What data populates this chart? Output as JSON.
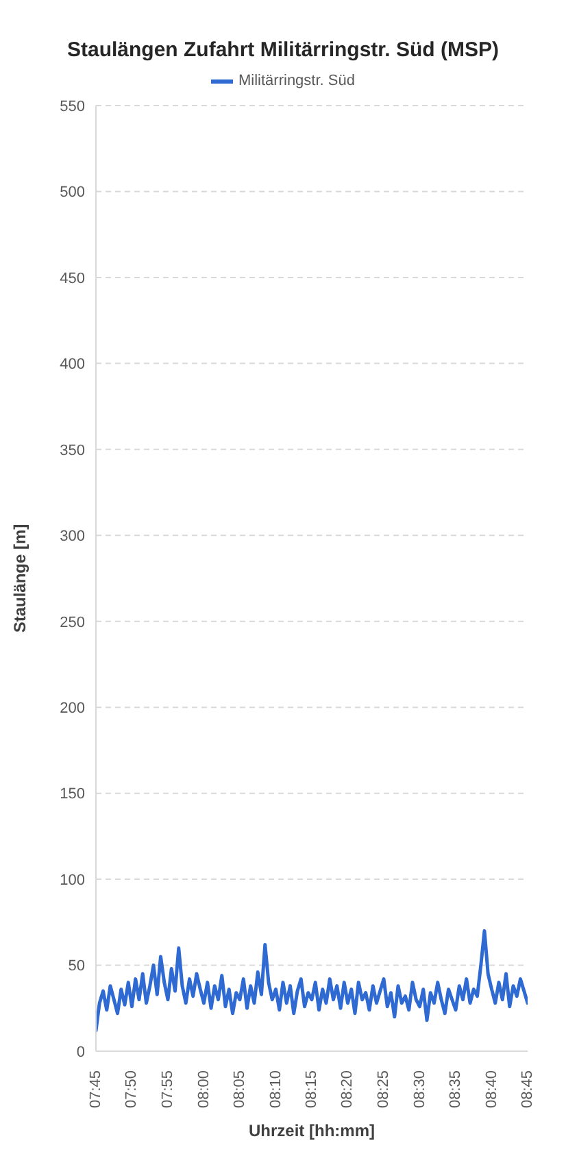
{
  "chart_data": {
    "type": "line",
    "title": "Staulängen Zufahrt Militärringstr. Süd (MSP)",
    "xlabel": "Uhrzeit [hh:mm]",
    "ylabel": "Staulänge [m]",
    "x": [
      7.75,
      7.7583,
      7.7667,
      7.775,
      7.7833,
      7.7917,
      7.8,
      7.8083,
      7.8167,
      7.825,
      7.8333,
      7.8417,
      7.85,
      7.8583,
      7.8667,
      7.875,
      7.8833,
      7.8917,
      7.9,
      7.9083,
      7.9167,
      7.925,
      7.9333,
      7.9417,
      7.95,
      7.9583,
      7.9667,
      7.975,
      7.9833,
      7.9917,
      8,
      8.0083,
      8.0167,
      8.025,
      8.0333,
      8.0417,
      8.05,
      8.0583,
      8.0667,
      8.075,
      8.0833,
      8.0917,
      8.1,
      8.1083,
      8.1167,
      8.125,
      8.1333,
      8.1417,
      8.15,
      8.1583,
      8.1667,
      8.175,
      8.1833,
      8.1917,
      8.2,
      8.2083,
      8.2167,
      8.225,
      8.2333,
      8.2417,
      8.25,
      8.2583,
      8.2667,
      8.275,
      8.2833,
      8.2917,
      8.3,
      8.3083,
      8.3167,
      8.325,
      8.3333,
      8.3417,
      8.35,
      8.3583,
      8.3667,
      8.375,
      8.3833,
      8.3917,
      8.4,
      8.4083,
      8.4167,
      8.425,
      8.4333,
      8.4417,
      8.45,
      8.4583,
      8.4667,
      8.475,
      8.4833,
      8.4917,
      8.5,
      8.5083,
      8.5167,
      8.525,
      8.5333,
      8.5417,
      8.55,
      8.5583,
      8.5667,
      8.575,
      8.5833,
      8.5917,
      8.6,
      8.6083,
      8.6167,
      8.625,
      8.6333,
      8.6417,
      8.65,
      8.6583,
      8.6667,
      8.675,
      8.6833,
      8.6917,
      8.7,
      8.7083,
      8.7167,
      8.725,
      8.7333,
      8.7417,
      8.75
    ],
    "series": [
      {
        "name": "Militärringstr. Süd",
        "color": "#2e6ad1",
        "values": [
          12,
          28,
          35,
          24,
          38,
          30,
          22,
          36,
          27,
          40,
          26,
          42,
          30,
          45,
          28,
          38,
          50,
          33,
          55,
          40,
          30,
          48,
          35,
          60,
          38,
          28,
          42,
          32,
          45,
          36,
          28,
          40,
          25,
          38,
          30,
          44,
          26,
          36,
          22,
          34,
          30,
          42,
          25,
          38,
          28,
          46,
          33,
          62,
          40,
          30,
          36,
          24,
          40,
          28,
          38,
          22,
          35,
          42,
          26,
          34,
          30,
          40,
          24,
          36,
          28,
          42,
          30,
          38,
          25,
          40,
          28,
          36,
          22,
          40,
          30,
          34,
          24,
          38,
          28,
          35,
          42,
          26,
          34,
          20,
          38,
          28,
          32,
          24,
          40,
          30,
          26,
          36,
          18,
          34,
          28,
          40,
          30,
          22,
          36,
          30,
          24,
          38,
          30,
          42,
          28,
          36,
          32,
          50,
          70,
          45,
          36,
          28,
          40,
          30,
          45,
          26,
          38,
          32,
          42,
          35,
          28
        ]
      }
    ],
    "xlim": [
      7.75,
      8.75
    ],
    "xticks": [
      {
        "value": 7.75,
        "label": "07:45"
      },
      {
        "value": 7.8333,
        "label": "07:50"
      },
      {
        "value": 7.9167,
        "label": "07:55"
      },
      {
        "value": 8,
        "label": "08:00"
      },
      {
        "value": 8.0833,
        "label": "08:05"
      },
      {
        "value": 8.1667,
        "label": "08:10"
      },
      {
        "value": 8.25,
        "label": "08:15"
      },
      {
        "value": 8.3333,
        "label": "08:20"
      },
      {
        "value": 8.4167,
        "label": "08:25"
      },
      {
        "value": 8.5,
        "label": "08:30"
      },
      {
        "value": 8.5833,
        "label": "08:35"
      },
      {
        "value": 8.6667,
        "label": "08:40"
      },
      {
        "value": 8.75,
        "label": "08:45"
      }
    ],
    "ylim": [
      0,
      550
    ],
    "yticks": [
      0,
      50,
      100,
      150,
      200,
      250,
      300,
      350,
      400,
      450,
      500,
      550
    ],
    "grid": "y",
    "legend": "top",
    "marker": "none",
    "line_style": "solid"
  }
}
